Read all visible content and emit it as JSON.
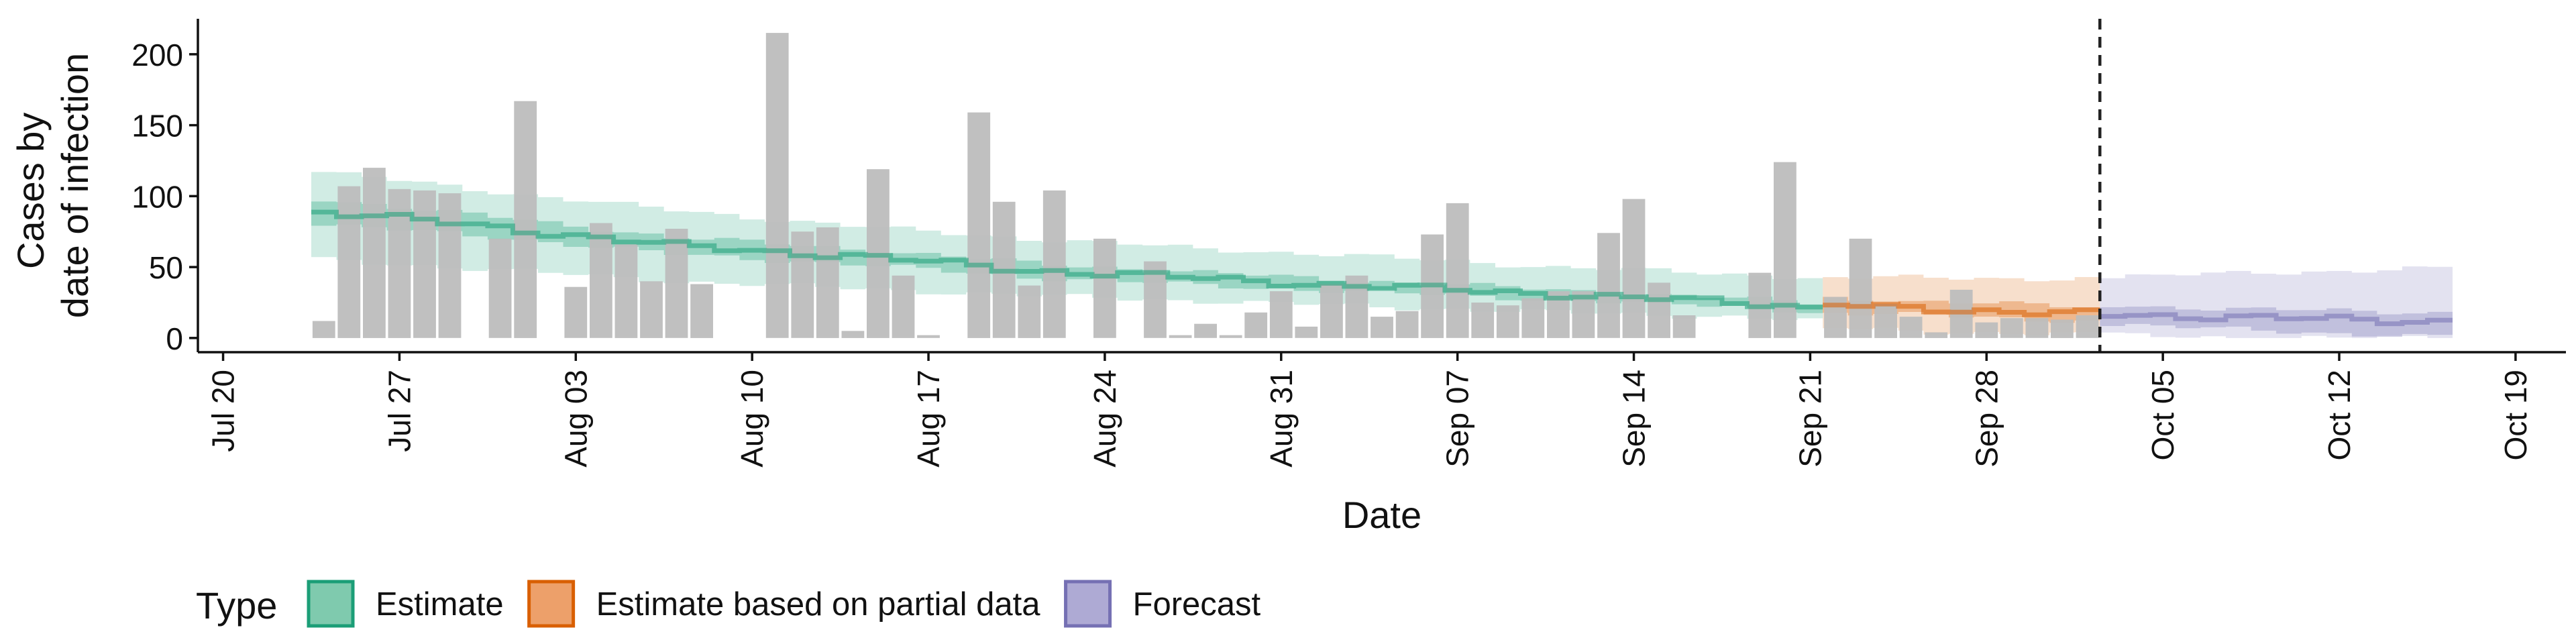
{
  "chart_data": {
    "type": "bar",
    "title": "",
    "xlabel": "Date",
    "ylabel": [
      "Cases by",
      "date of infection"
    ],
    "ylim": [
      -10,
      225
    ],
    "yticks": [
      0,
      50,
      100,
      150,
      200
    ],
    "xlim": [
      "2020-07-19",
      "2020-10-21"
    ],
    "xticks": [
      "Jul 20",
      "Jul 27",
      "Aug 03",
      "Aug 10",
      "Aug 17",
      "Aug 24",
      "Aug 31",
      "Sep 07",
      "Sep 14",
      "Sep 21",
      "Sep 28",
      "Oct 05",
      "Oct 12",
      "Oct 19"
    ],
    "xtick_dates": [
      "2020-07-20",
      "2020-07-27",
      "2020-08-03",
      "2020-08-10",
      "2020-08-17",
      "2020-08-24",
      "2020-08-31",
      "2020-09-07",
      "2020-09-14",
      "2020-09-21",
      "2020-09-28",
      "2020-10-05",
      "2020-10-12",
      "2020-10-19"
    ],
    "vline_date": "2020-10-02",
    "grid": false,
    "legend": {
      "title": "Type",
      "position": "bottom",
      "entries": [
        {
          "label": "Estimate",
          "fill": "#7fcaae",
          "stroke": "#1b9e77"
        },
        {
          "label": "Estimate based on partial data",
          "fill": "#eda06a",
          "stroke": "#d95f02"
        },
        {
          "label": "Forecast",
          "fill": "#aeaad4",
          "stroke": "#7570b3"
        }
      ]
    },
    "bars": {
      "color": "#bdbdbd",
      "x": [
        "2020-07-24",
        "2020-07-25",
        "2020-07-26",
        "2020-07-27",
        "2020-07-28",
        "2020-07-29",
        "2020-07-30",
        "2020-07-31",
        "2020-08-01",
        "2020-08-02",
        "2020-08-03",
        "2020-08-04",
        "2020-08-05",
        "2020-08-06",
        "2020-08-07",
        "2020-08-08",
        "2020-08-09",
        "2020-08-10",
        "2020-08-11",
        "2020-08-12",
        "2020-08-13",
        "2020-08-14",
        "2020-08-15",
        "2020-08-16",
        "2020-08-17",
        "2020-08-18",
        "2020-08-19",
        "2020-08-20",
        "2020-08-21",
        "2020-08-22",
        "2020-08-23",
        "2020-08-24",
        "2020-08-25",
        "2020-08-26",
        "2020-08-27",
        "2020-08-28",
        "2020-08-29",
        "2020-08-30",
        "2020-08-31",
        "2020-09-01",
        "2020-09-02",
        "2020-09-03",
        "2020-09-04",
        "2020-09-05",
        "2020-09-06",
        "2020-09-07",
        "2020-09-08",
        "2020-09-09",
        "2020-09-10",
        "2020-09-11",
        "2020-09-12",
        "2020-09-13",
        "2020-09-14",
        "2020-09-15",
        "2020-09-16",
        "2020-09-17",
        "2020-09-18",
        "2020-09-19",
        "2020-09-20",
        "2020-09-21",
        "2020-09-22",
        "2020-09-23",
        "2020-09-24",
        "2020-09-25",
        "2020-09-26",
        "2020-09-27",
        "2020-09-28",
        "2020-09-29",
        "2020-09-30",
        "2020-10-01",
        "2020-10-02"
      ],
      "values": [
        12,
        107,
        120,
        105,
        104,
        102,
        0,
        70,
        167,
        0,
        36,
        81,
        66,
        40,
        77,
        38,
        0,
        0,
        215,
        75,
        78,
        5,
        119,
        44,
        2,
        0,
        159,
        96,
        37,
        104,
        0,
        70,
        0,
        54,
        2,
        10,
        2,
        18,
        33,
        8,
        38,
        44,
        15,
        19,
        73,
        95,
        25,
        23,
        28,
        33,
        33,
        74,
        98,
        39,
        16,
        0,
        0,
        46,
        124,
        0,
        29,
        70,
        24,
        15,
        4,
        34,
        11,
        14,
        14,
        13,
        16
      ]
    },
    "series": [
      {
        "name": "Estimate",
        "color": "#1b9e77",
        "x": [
          "2020-07-24",
          "2020-07-31",
          "2020-08-07",
          "2020-08-14",
          "2020-08-21",
          "2020-08-28",
          "2020-09-04",
          "2020-09-11",
          "2020-09-18",
          "2020-09-21"
        ],
        "median": [
          89,
          78,
          65,
          58,
          48,
          42,
          36,
          31,
          25,
          22
        ],
        "lower50": [
          80,
          71,
          59,
          52,
          43,
          37,
          32,
          27,
          22,
          19
        ],
        "upper50": [
          98,
          85,
          71,
          63,
          53,
          46,
          40,
          34,
          28,
          25
        ],
        "lower90": [
          55,
          48,
          40,
          35,
          30,
          26,
          22,
          18,
          15,
          12
        ],
        "upper90": [
          117,
          103,
          90,
          79,
          70,
          63,
          57,
          50,
          45,
          43
        ]
      },
      {
        "name": "Estimate based on partial data",
        "color": "#d95f02",
        "x": [
          "2020-09-22",
          "2020-09-27",
          "2020-10-02"
        ],
        "median": [
          23,
          20,
          17
        ],
        "lower50": [
          18,
          15,
          12
        ],
        "upper50": [
          28,
          25,
          22
        ],
        "lower90": [
          7,
          4,
          2
        ],
        "upper90": [
          43,
          42,
          42
        ]
      },
      {
        "name": "Forecast",
        "color": "#7570b3",
        "x": [
          "2020-10-03",
          "2020-10-09",
          "2020-10-16"
        ],
        "median": [
          17,
          14,
          12
        ],
        "lower50": [
          10,
          5,
          1
        ],
        "upper50": [
          23,
          20,
          18
        ],
        "lower90": [
          2,
          0,
          0
        ],
        "upper90": [
          43,
          46,
          49
        ]
      }
    ]
  }
}
